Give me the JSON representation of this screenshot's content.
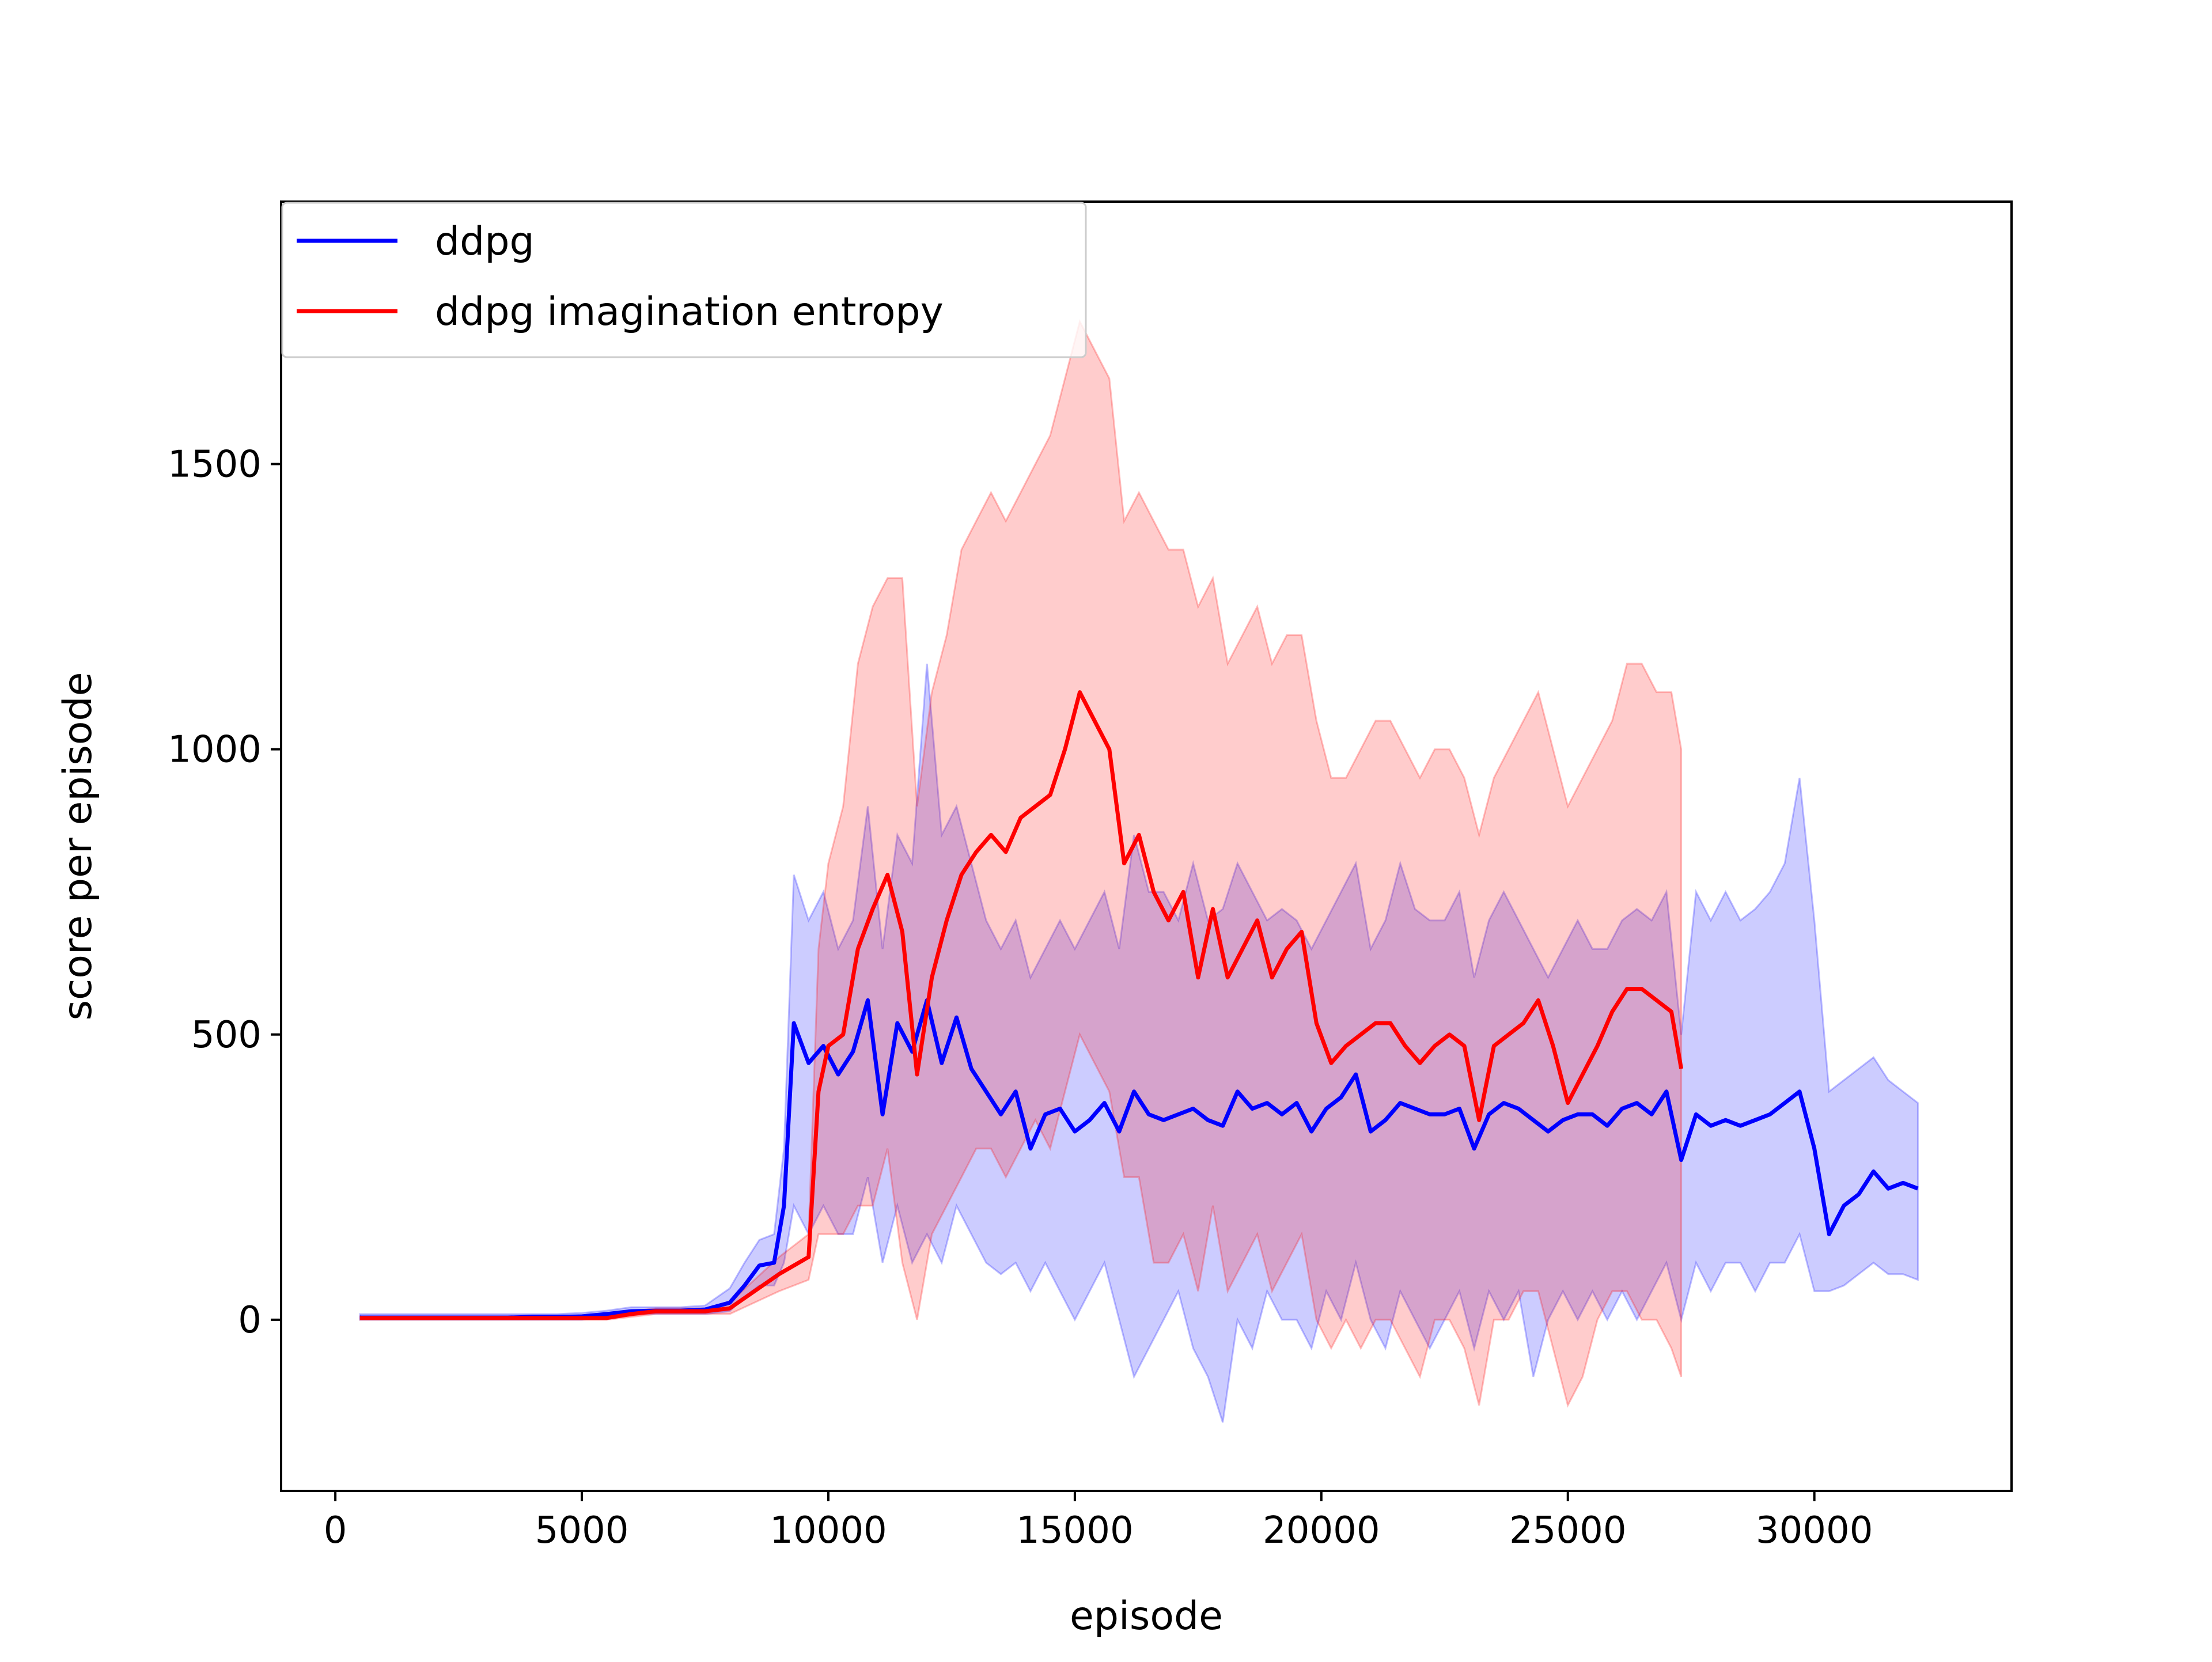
{
  "chart_data": {
    "type": "line",
    "title": "",
    "xlabel": "episode",
    "ylabel": "score per episode",
    "xlim": [
      -1100,
      34000
    ],
    "ylim": [
      -300,
      1960
    ],
    "xticks": [
      0,
      5000,
      10000,
      15000,
      20000,
      25000,
      30000
    ],
    "xtick_labels": [
      "0",
      "5000",
      "10000",
      "15000",
      "20000",
      "25000",
      "30000"
    ],
    "yticks": [
      0,
      500,
      1000,
      1500
    ],
    "ytick_labels": [
      "0",
      "500",
      "1000",
      "1500"
    ],
    "grid": false,
    "legend_position": "top-left",
    "series": [
      {
        "name": "ddpg",
        "color": "#0000ff",
        "band_color": "#0000ff",
        "x": [
          500,
          1000,
          1500,
          2000,
          2500,
          3000,
          3500,
          4000,
          4500,
          5000,
          5500,
          6000,
          6500,
          7000,
          7500,
          8000,
          8300,
          8600,
          8900,
          9100,
          9300,
          9600,
          9900,
          10200,
          10500,
          10800,
          11100,
          11400,
          11700,
          12000,
          12300,
          12600,
          12900,
          13200,
          13500,
          13800,
          14100,
          14400,
          14700,
          15000,
          15300,
          15600,
          15900,
          16200,
          16500,
          16800,
          17100,
          17400,
          17700,
          18000,
          18300,
          18600,
          18900,
          19200,
          19500,
          19800,
          20100,
          20400,
          20700,
          21000,
          21300,
          21600,
          21900,
          22200,
          22500,
          22800,
          23100,
          23400,
          23700,
          24000,
          24300,
          24600,
          24900,
          25200,
          25500,
          25800,
          26100,
          26400,
          26700,
          27000,
          27300,
          27600,
          27900,
          28200,
          28500,
          28800,
          29100,
          29400,
          29700,
          30000,
          30300,
          30600,
          30900,
          31200,
          31500,
          31800,
          32100
        ],
        "y": [
          4,
          4,
          4,
          4,
          4,
          4,
          4,
          5,
          5,
          6,
          10,
          15,
          16,
          16,
          18,
          30,
          60,
          95,
          100,
          200,
          520,
          450,
          480,
          430,
          470,
          560,
          360,
          520,
          470,
          560,
          450,
          530,
          440,
          400,
          360,
          400,
          300,
          360,
          370,
          330,
          350,
          380,
          330,
          400,
          360,
          350,
          360,
          370,
          350,
          340,
          400,
          370,
          380,
          360,
          380,
          330,
          370,
          390,
          430,
          330,
          350,
          380,
          370,
          360,
          360,
          370,
          300,
          360,
          380,
          370,
          350,
          330,
          350,
          360,
          360,
          340,
          370,
          380,
          360,
          400,
          280,
          360,
          340,
          350,
          340,
          350,
          360,
          380,
          400,
          300,
          150,
          200,
          220,
          260,
          230,
          240,
          230
        ],
        "band_low": [
          0,
          0,
          0,
          0,
          0,
          0,
          0,
          0,
          0,
          0,
          5,
          10,
          10,
          10,
          10,
          15,
          40,
          60,
          60,
          100,
          200,
          150,
          200,
          150,
          150,
          250,
          100,
          200,
          100,
          150,
          100,
          200,
          150,
          100,
          80,
          100,
          50,
          100,
          50,
          0,
          50,
          100,
          0,
          -100,
          -50,
          0,
          50,
          -50,
          -100,
          -180,
          0,
          -50,
          50,
          0,
          0,
          -50,
          50,
          0,
          100,
          0,
          -50,
          50,
          0,
          -50,
          0,
          50,
          -50,
          50,
          0,
          50,
          -100,
          0,
          50,
          0,
          50,
          0,
          50,
          0,
          50,
          100,
          0,
          100,
          50,
          100,
          100,
          50,
          100,
          100,
          150,
          50,
          50,
          60,
          80,
          100,
          80,
          80,
          70
        ],
        "band_high": [
          10,
          10,
          10,
          10,
          10,
          10,
          10,
          10,
          10,
          12,
          16,
          22,
          22,
          22,
          25,
          55,
          100,
          140,
          150,
          300,
          780,
          700,
          750,
          650,
          700,
          900,
          650,
          850,
          800,
          1150,
          850,
          900,
          800,
          700,
          650,
          700,
          600,
          650,
          700,
          650,
          700,
          750,
          650,
          850,
          750,
          750,
          700,
          800,
          700,
          720,
          800,
          750,
          700,
          720,
          700,
          650,
          700,
          750,
          800,
          650,
          700,
          800,
          720,
          700,
          700,
          750,
          600,
          700,
          750,
          700,
          650,
          600,
          650,
          700,
          650,
          650,
          700,
          720,
          700,
          750,
          500,
          750,
          700,
          750,
          700,
          720,
          750,
          800,
          950,
          700,
          400,
          420,
          440,
          460,
          420,
          400,
          380
        ]
      },
      {
        "name": "ddpg imagination entropy",
        "color": "#ff0000",
        "band_color": "#ff0000",
        "x": [
          500,
          1000,
          1500,
          2000,
          2500,
          3000,
          3500,
          4000,
          4500,
          5000,
          5500,
          6000,
          6500,
          7000,
          7500,
          8000,
          8500,
          9000,
          9300,
          9600,
          9800,
          10000,
          10300,
          10600,
          10900,
          11200,
          11500,
          11800,
          12100,
          12400,
          12700,
          13000,
          13300,
          13600,
          13900,
          14200,
          14500,
          14800,
          15100,
          15400,
          15700,
          16000,
          16300,
          16600,
          16900,
          17200,
          17500,
          17800,
          18100,
          18400,
          18700,
          19000,
          19300,
          19600,
          19900,
          20200,
          20500,
          20800,
          21100,
          21400,
          21700,
          22000,
          22300,
          22600,
          22900,
          23200,
          23500,
          23800,
          24100,
          24400,
          24700,
          25000,
          25300,
          25600,
          25900,
          26200,
          26500,
          26800,
          27100,
          27300
        ],
        "y": [
          3,
          3,
          3,
          3,
          3,
          3,
          3,
          3,
          3,
          3,
          3,
          10,
          15,
          15,
          15,
          20,
          50,
          80,
          95,
          110,
          400,
          480,
          500,
          650,
          720,
          780,
          680,
          430,
          600,
          700,
          780,
          820,
          850,
          820,
          880,
          900,
          920,
          1000,
          1100,
          1050,
          1000,
          800,
          850,
          750,
          700,
          750,
          600,
          720,
          600,
          650,
          700,
          600,
          650,
          680,
          520,
          450,
          480,
          500,
          520,
          520,
          480,
          450,
          480,
          500,
          480,
          350,
          480,
          500,
          520,
          560,
          480,
          380,
          430,
          480,
          540,
          580,
          580,
          560,
          540,
          440
        ],
        "band_low": [
          0,
          0,
          0,
          0,
          0,
          0,
          0,
          0,
          0,
          0,
          0,
          5,
          10,
          10,
          10,
          10,
          30,
          50,
          60,
          70,
          150,
          150,
          150,
          200,
          200,
          300,
          100,
          0,
          150,
          200,
          250,
          300,
          300,
          250,
          300,
          350,
          300,
          400,
          500,
          450,
          400,
          250,
          250,
          100,
          100,
          150,
          50,
          200,
          50,
          100,
          150,
          50,
          100,
          150,
          0,
          -50,
          0,
          -50,
          0,
          0,
          -50,
          -100,
          0,
          0,
          -50,
          -150,
          0,
          0,
          50,
          50,
          -50,
          -150,
          -100,
          0,
          50,
          50,
          0,
          0,
          -50,
          -100
        ],
        "band_high": [
          6,
          6,
          6,
          6,
          6,
          6,
          6,
          6,
          6,
          6,
          6,
          15,
          20,
          20,
          20,
          30,
          70,
          110,
          130,
          150,
          650,
          800,
          900,
          1150,
          1250,
          1300,
          1300,
          900,
          1100,
          1200,
          1350,
          1400,
          1450,
          1400,
          1450,
          1500,
          1550,
          1650,
          1750,
          1700,
          1650,
          1400,
          1450,
          1400,
          1350,
          1350,
          1250,
          1300,
          1150,
          1200,
          1250,
          1150,
          1200,
          1200,
          1050,
          950,
          950,
          1000,
          1050,
          1050,
          1000,
          950,
          1000,
          1000,
          950,
          850,
          950,
          1000,
          1050,
          1100,
          1000,
          900,
          950,
          1000,
          1050,
          1150,
          1150,
          1100,
          1100,
          1000
        ]
      }
    ]
  }
}
